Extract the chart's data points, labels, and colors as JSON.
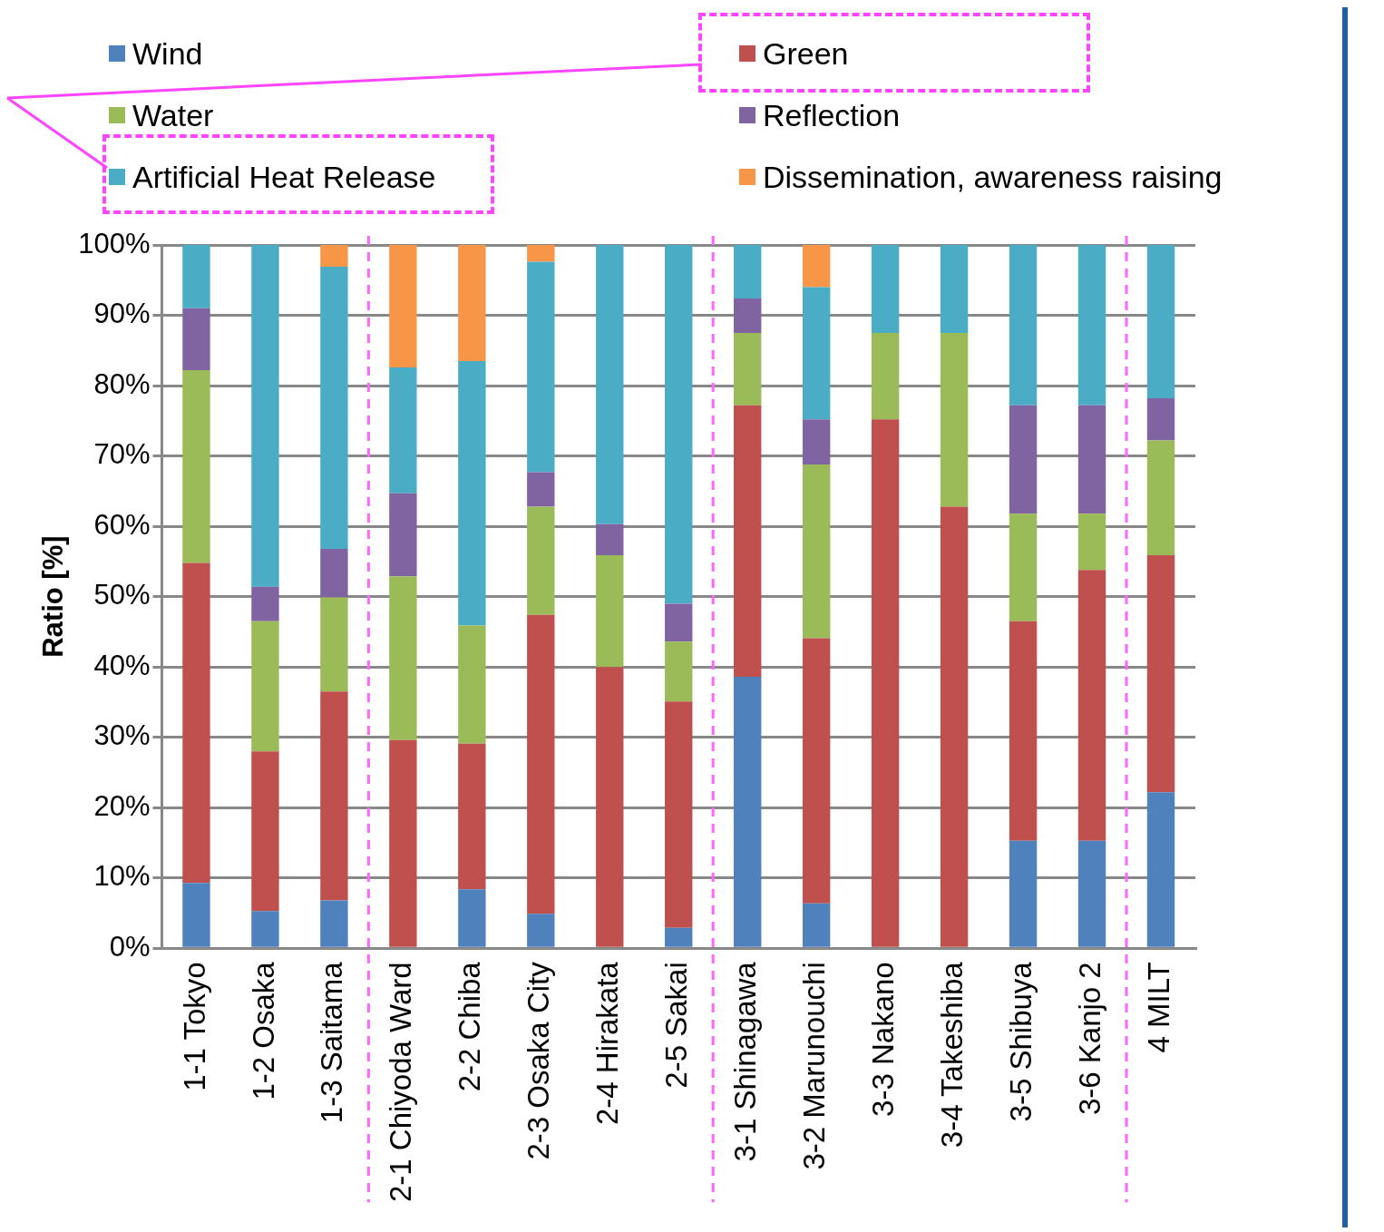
{
  "chart_data": {
    "type": "bar",
    "stacked": true,
    "ylabel": "Ratio [%]",
    "categories": [
      "1-1 Tokyo",
      "1-2 Osaka",
      "1-3 Saitama",
      "2-1 Chiyoda Ward",
      "2-2 Chiba",
      "2-3 Osaka City",
      "2-4 Hirakata",
      "2-5 Sakai",
      "3-1 Shinagawa",
      "3-2 Marunouchi",
      "3-3 Nakano",
      "3-4 Takeshiba",
      "3-5 Shibuya",
      "3-6 Kanjo 2",
      "4 MILT"
    ],
    "series": [
      {
        "name": "Wind",
        "color": "#4f81bd",
        "values": [
          9.3,
          5.3,
          6.8,
          0,
          8.4,
          4.9,
          0,
          2.9,
          38.6,
          6.4,
          0,
          0,
          15.3,
          15.3,
          22.2
        ]
      },
      {
        "name": "Green",
        "color": "#c0504d",
        "values": [
          45.5,
          22.7,
          29.7,
          29.6,
          20.7,
          42.5,
          40.0,
          32.2,
          38.6,
          37.7,
          75.2,
          62.8,
          31.2,
          38.5,
          33.7
        ]
      },
      {
        "name": "Water",
        "color": "#9bbb59",
        "values": [
          27.4,
          18.5,
          13.4,
          23.3,
          16.8,
          15.4,
          15.9,
          8.5,
          10.3,
          24.7,
          12.3,
          24.7,
          15.3,
          8.0,
          16.3
        ]
      },
      {
        "name": "Reflection",
        "color": "#8064a2",
        "values": [
          8.8,
          4.9,
          6.9,
          11.8,
          0,
          4.9,
          4.4,
          5.4,
          4.9,
          6.4,
          0,
          0,
          15.4,
          15.4,
          6.0
        ]
      },
      {
        "name": "Artificial Heat Release",
        "color": "#4bacc6",
        "values": [
          9.0,
          48.6,
          40.1,
          17.9,
          37.6,
          29.9,
          39.7,
          51.0,
          7.6,
          18.8,
          12.5,
          12.5,
          22.8,
          22.8,
          21.8
        ]
      },
      {
        "name": "Dissemination, awareness raising",
        "color": "#f79646",
        "values": [
          0,
          0,
          3.1,
          17.4,
          16.5,
          2.4,
          0,
          0,
          0,
          6.0,
          0,
          0,
          0,
          0,
          0
        ]
      }
    ],
    "ylim": [
      0,
      100
    ],
    "yticks": [
      {
        "value": 0,
        "label": "0%"
      },
      {
        "value": 10,
        "label": "10%"
      },
      {
        "value": 20,
        "label": "20%"
      },
      {
        "value": 30,
        "label": "30%"
      },
      {
        "value": 40,
        "label": "40%"
      },
      {
        "value": 50,
        "label": "50%"
      },
      {
        "value": 60,
        "label": "60%"
      },
      {
        "value": 70,
        "label": "70%"
      },
      {
        "value": 80,
        "label": "80%"
      },
      {
        "value": 90,
        "label": "90%"
      },
      {
        "value": 100,
        "label": "100%"
      }
    ],
    "grid": "y",
    "legend": "top"
  }
}
